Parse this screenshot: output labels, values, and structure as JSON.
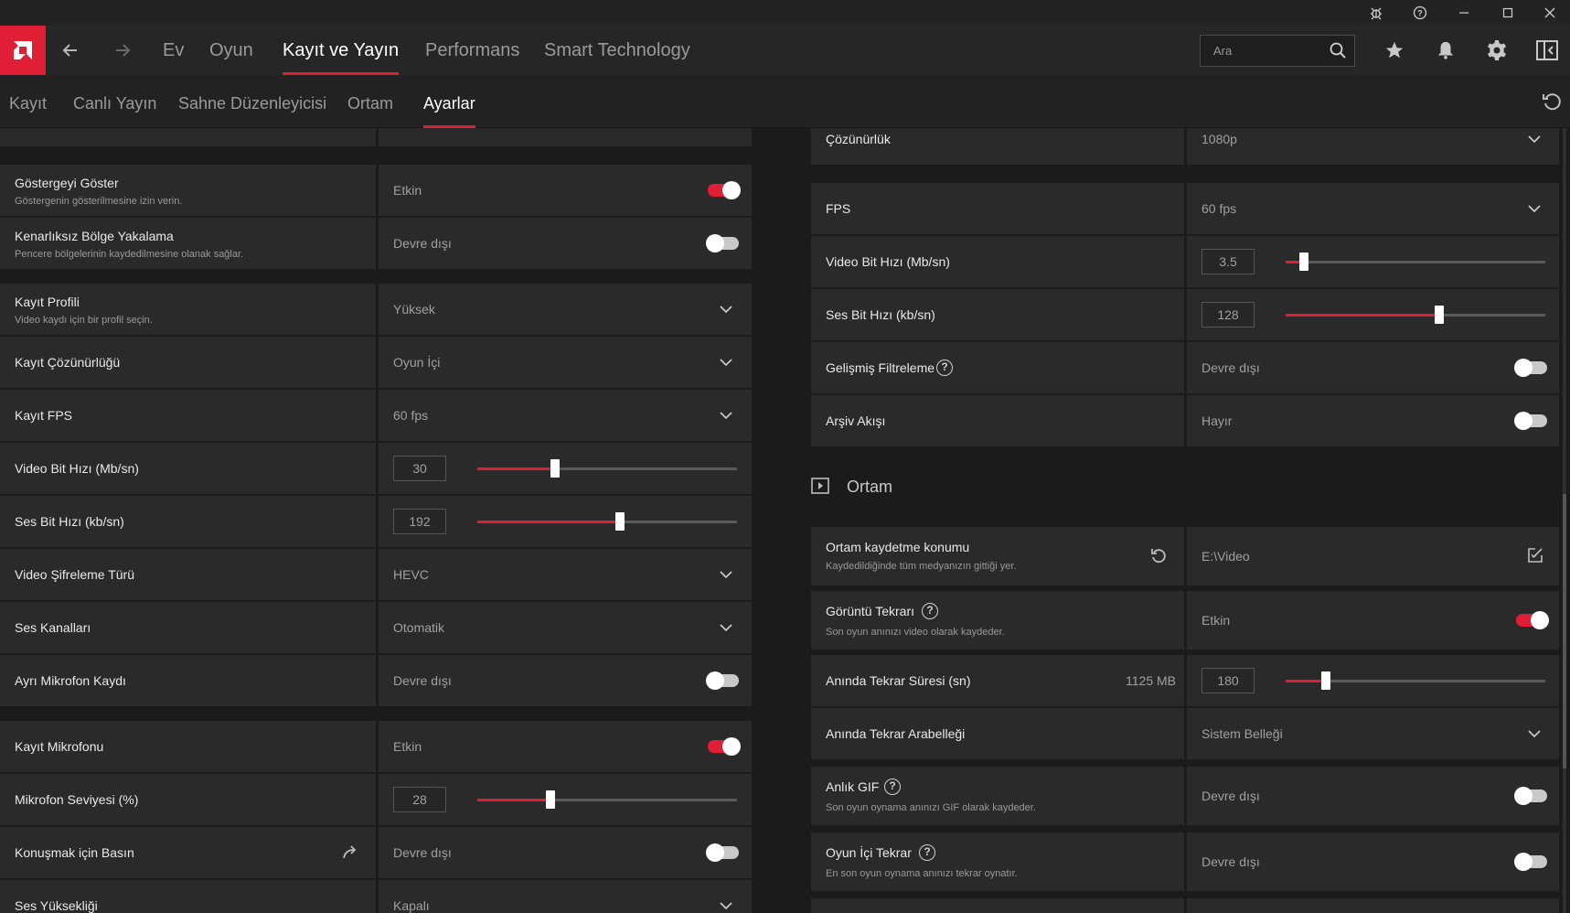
{
  "window": {
    "controls": [
      "bug-report",
      "help",
      "minimize",
      "maximize",
      "close"
    ]
  },
  "nav": {
    "home": "Ev",
    "game": "Oyun",
    "record": "Kayıt ve Yayın",
    "performance": "Performans",
    "smart": "Smart Technology",
    "search_placeholder": "Ara"
  },
  "subnav": {
    "kayit": "Kayıt",
    "canli": "Canlı Yayın",
    "sahne": "Sahne Düzenleyicisi",
    "ortam": "Ortam",
    "ayarlar": "Ayarlar"
  },
  "left": {
    "indicator": {
      "title": "Göstergeyi Göster",
      "sub": "Göstergenin gösterilmesine izin verin.",
      "value": "Etkin",
      "on": true
    },
    "borderless": {
      "title": "Kenarlıksız Bölge Yakalama",
      "sub": "Pencere bölgelerinin kaydedilmesine olanak sağlar.",
      "value": "Devre dışı",
      "on": false
    },
    "profile": {
      "title": "Kayıt Profili",
      "sub": "Video kaydı için bir profil seçin.",
      "value": "Yüksek"
    },
    "resolution": {
      "title": "Kayıt Çözünürlüğü",
      "value": "Oyun İçi"
    },
    "fps": {
      "title": "Kayıt FPS",
      "value": "60 fps"
    },
    "vbitrate": {
      "title": "Video Bit Hızı (Mb/sn)",
      "value": "30",
      "level": 0.3
    },
    "abitrate": {
      "title": "Ses Bit Hızı (kb/sn)",
      "value": "192",
      "level": 0.55
    },
    "encoding": {
      "title": "Video Şifreleme Türü",
      "value": "HEVC"
    },
    "channels": {
      "title": "Ses Kanalları",
      "value": "Otomatik"
    },
    "separate_mic": {
      "title": "Ayrı Mikrofon Kaydı",
      "value": "Devre dışı",
      "on": false
    },
    "mic": {
      "title": "Kayıt Mikrofonu",
      "value": "Etkin",
      "on": true
    },
    "mic_level": {
      "title": "Mikrofon Seviyesi (%)",
      "value": "28",
      "level": 0.28
    },
    "ptt": {
      "title": "Konuşmak için Basın",
      "value": "Devre dışı",
      "on": false
    },
    "volume": {
      "title": "Ses Yüksekliği",
      "value": "Kapalı"
    }
  },
  "right": {
    "resolution": {
      "title": "Çözünürlük",
      "value": "1080p"
    },
    "fps": {
      "title": "FPS",
      "value": "60 fps"
    },
    "vbitrate": {
      "title": "Video Bit Hızı (Mb/sn)",
      "value": "3.5",
      "level": 0.07
    },
    "abitrate": {
      "title": "Ses Bit Hızı (kb/sn)",
      "value": "128",
      "level": 0.59
    },
    "filter": {
      "title": "Gelişmiş Filtreleme",
      "value": "Devre dışı",
      "on": false
    },
    "archive": {
      "title": "Arşiv Akışı",
      "value": "Hayır",
      "on": false
    },
    "media_section": "Ortam",
    "save_location": {
      "title": "Ortam kaydetme konumu",
      "sub": "Kaydedildiğinde tüm medyanızın gittiği yer.",
      "value": "E:\\Video"
    },
    "replay": {
      "title": "Görüntü Tekrarı",
      "sub": "Son oyun anınızı video olarak kaydeder.",
      "value": "Etkin",
      "on": true
    },
    "replay_duration": {
      "title": "Anında Tekrar Süresi (sn)",
      "size": "1125 MB",
      "value": "180",
      "level": 0.155
    },
    "replay_buffer": {
      "title": "Anında Tekrar Arabelleği",
      "value": "Sistem Belleği"
    },
    "gif": {
      "title": "Anlık GIF",
      "sub": "Son oyun oynama anınızı GIF olarak kaydeder.",
      "value": "Devre dışı",
      "on": false
    },
    "ingame_replay": {
      "title": "Oyun İçi Tekrar",
      "sub": "En son oyun oynama anınızı tekrar oynatır.",
      "value": "Devre dışı",
      "on": false
    }
  }
}
